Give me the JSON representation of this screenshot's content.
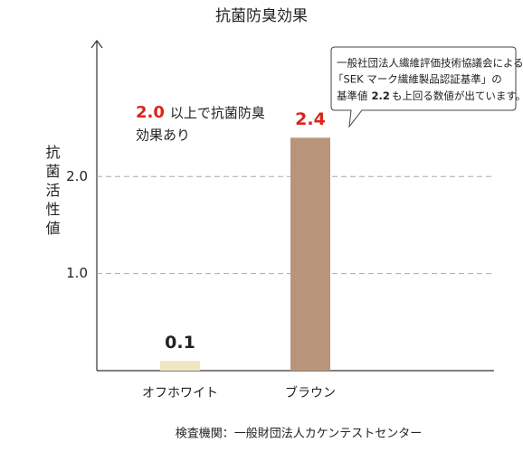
{
  "chart_data": {
    "type": "bar",
    "title": "抗菌防臭効果",
    "y_label": "抗菌活性値",
    "categories": [
      "オフホワイト",
      "ブラウン"
    ],
    "values": [
      0.1,
      2.4
    ],
    "colors": [
      "#efe6c2",
      "#b8957a"
    ],
    "value_label_colors": [
      "#222222",
      "#d9261c"
    ],
    "ylim": [
      0,
      3.4
    ],
    "yticks": [
      {
        "value": 1,
        "label": "1.0"
      },
      {
        "value": 2,
        "label": "2.0"
      }
    ],
    "grid": true,
    "annotation": {
      "highlight": "2.0",
      "line1": "以上で抗菌防臭",
      "line2": "効果あり"
    },
    "callout": {
      "line1": "一般社団法人繊維評価技術協議会による",
      "line2": "「SEK マーク繊維製品認証基準」の",
      "line3_before": "基準値",
      "line3_bold": "2.2",
      "line3_after": "も上回る数値が出ています。"
    },
    "footer": "検査機関：一般財団法人カケンテストセンター"
  }
}
